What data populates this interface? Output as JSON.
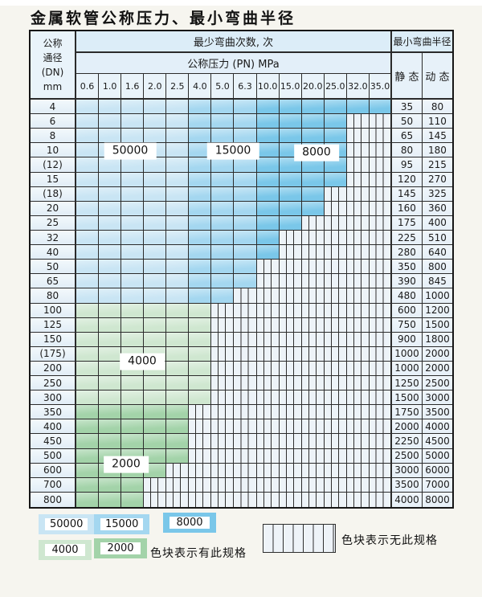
{
  "title": "金属软管公称压力、最小弯曲半径",
  "palette": {
    "c50000": "#c9e5f4",
    "c15000": "#a4d7f0",
    "c8000": "#7ac7e9",
    "c4000": "#cfe7d0",
    "c2000": "#a3d3a9",
    "striped_bg": "#edf3f8",
    "grid_line": "#2b2b2b"
  },
  "table": {
    "header": {
      "dn_lines": [
        "公称",
        "通径",
        "(DN)",
        "mm"
      ],
      "bend_times": "最少弯曲次数, 次",
      "pressure": "公称压力 (PN) MPa",
      "radius": "最小弯曲半径",
      "static": "静 态",
      "dynamic": "动 态",
      "pn_columns": [
        "0.6",
        "1.0",
        "1.6",
        "2.0",
        "2.5",
        "4.0",
        "5.0",
        "6.3",
        "10.0",
        "15.0",
        "20.0",
        "25.0",
        "32.0",
        "35.0"
      ]
    },
    "blue_column_bands": {
      "c50000": [
        0,
        4
      ],
      "c15000": [
        5,
        7
      ],
      "c8000": [
        8,
        13
      ]
    },
    "rows": [
      {
        "dn": "4",
        "colored_through": 13,
        "palette": "blue",
        "static": "35",
        "dynamic": "80"
      },
      {
        "dn": "6",
        "colored_through": 11,
        "palette": "blue",
        "static": "50",
        "dynamic": "110"
      },
      {
        "dn": "8",
        "colored_through": 11,
        "palette": "blue",
        "static": "65",
        "dynamic": "145"
      },
      {
        "dn": "10",
        "colored_through": 11,
        "palette": "blue",
        "static": "80",
        "dynamic": "180"
      },
      {
        "dn": "(12)",
        "colored_through": 11,
        "palette": "blue",
        "static": "95",
        "dynamic": "215"
      },
      {
        "dn": "15",
        "colored_through": 11,
        "palette": "blue",
        "static": "120",
        "dynamic": "270"
      },
      {
        "dn": "(18)",
        "colored_through": 10,
        "palette": "blue",
        "static": "145",
        "dynamic": "325"
      },
      {
        "dn": "20",
        "colored_through": 10,
        "palette": "blue",
        "static": "160",
        "dynamic": "360"
      },
      {
        "dn": "25",
        "colored_through": 9,
        "palette": "blue",
        "static": "175",
        "dynamic": "400"
      },
      {
        "dn": "32",
        "colored_through": 8,
        "palette": "blue",
        "static": "225",
        "dynamic": "510"
      },
      {
        "dn": "40",
        "colored_through": 8,
        "palette": "blue",
        "static": "280",
        "dynamic": "640"
      },
      {
        "dn": "50",
        "colored_through": 7,
        "palette": "blue",
        "static": "350",
        "dynamic": "800"
      },
      {
        "dn": "65",
        "colored_through": 7,
        "palette": "blue",
        "static": "390",
        "dynamic": "845"
      },
      {
        "dn": "80",
        "colored_through": 6,
        "palette": "blue",
        "static": "480",
        "dynamic": "1000"
      },
      {
        "dn": "100",
        "colored_through": 5,
        "palette": "green1",
        "static": "600",
        "dynamic": "1200"
      },
      {
        "dn": "125",
        "colored_through": 5,
        "palette": "green1",
        "static": "750",
        "dynamic": "1500"
      },
      {
        "dn": "150",
        "colored_through": 5,
        "palette": "green1",
        "static": "900",
        "dynamic": "1800"
      },
      {
        "dn": "(175)",
        "colored_through": 5,
        "palette": "green1",
        "static": "1000",
        "dynamic": "2000"
      },
      {
        "dn": "200",
        "colored_through": 5,
        "palette": "green1",
        "static": "1000",
        "dynamic": "2000"
      },
      {
        "dn": "250",
        "colored_through": 5,
        "palette": "green1",
        "static": "1250",
        "dynamic": "2500"
      },
      {
        "dn": "300",
        "colored_through": 5,
        "palette": "green1",
        "static": "1500",
        "dynamic": "3000"
      },
      {
        "dn": "350",
        "colored_through": 4,
        "palette": "green2",
        "static": "1750",
        "dynamic": "3500"
      },
      {
        "dn": "400",
        "colored_through": 4,
        "palette": "green2",
        "static": "2000",
        "dynamic": "4000"
      },
      {
        "dn": "450",
        "colored_through": 4,
        "palette": "green2",
        "static": "2250",
        "dynamic": "4500"
      },
      {
        "dn": "500",
        "colored_through": 4,
        "palette": "green2",
        "static": "2500",
        "dynamic": "5000"
      },
      {
        "dn": "600",
        "colored_through": 3,
        "palette": "green2",
        "static": "3000",
        "dynamic": "6000"
      },
      {
        "dn": "700",
        "colored_through": 2,
        "palette": "green2",
        "static": "3500",
        "dynamic": "7000"
      },
      {
        "dn": "800",
        "colored_through": 2,
        "palette": "green2",
        "static": "4000",
        "dynamic": "8000"
      }
    ]
  },
  "overlay": {
    "l50000": "50000",
    "l15000": "15000",
    "l8000": "8000",
    "l4000": "4000",
    "l2000": "2000"
  },
  "legend": {
    "items": [
      {
        "label": "50000",
        "color": "#c9e5f4"
      },
      {
        "label": "15000",
        "color": "#a4d7f0"
      },
      {
        "label": "8000",
        "color": "#7ac7e9"
      },
      {
        "label": "4000",
        "color": "#cfe7d0"
      },
      {
        "label": "2000",
        "color": "#a3d3a9"
      }
    ],
    "has_spec_text": "色块表示有此规格",
    "no_spec_text": "色块表示无此规格"
  }
}
